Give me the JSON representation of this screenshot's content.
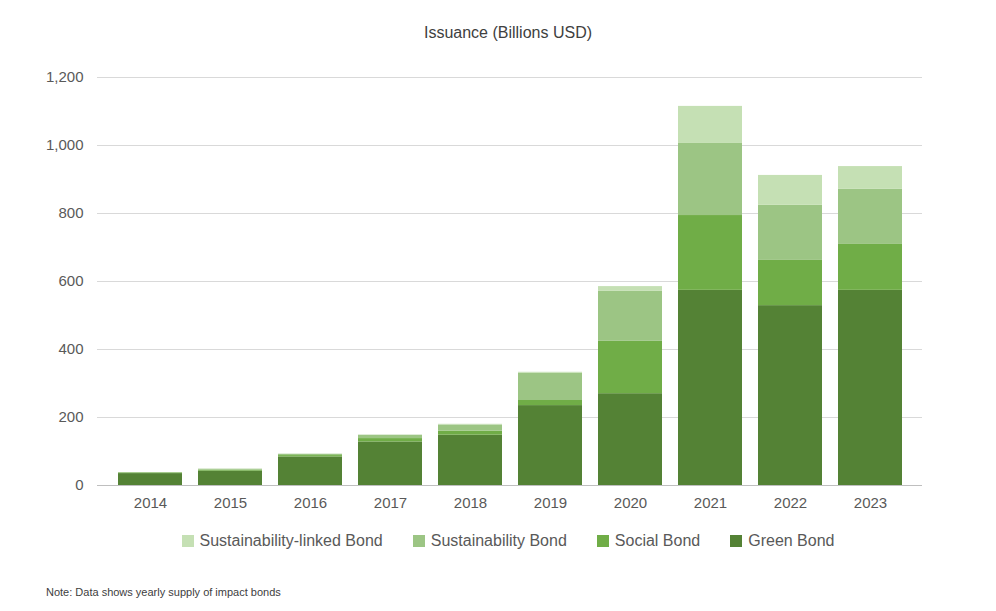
{
  "chart_data": {
    "type": "bar",
    "title": "Issuance (Billions USD)",
    "note": "Note: Data shows yearly supply of impact bonds",
    "categories": [
      "2014",
      "2015",
      "2016",
      "2017",
      "2018",
      "2019",
      "2020",
      "2021",
      "2022",
      "2023"
    ],
    "series": [
      {
        "name": "Green Bond",
        "color": "#548235",
        "values": [
          35,
          42,
          84,
          128,
          148,
          235,
          270,
          574,
          529,
          574
        ]
      },
      {
        "name": "Social Bond",
        "color": "#70ad47",
        "values": [
          2,
          3,
          4,
          10,
          12,
          15,
          154,
          220,
          133,
          135
        ]
      },
      {
        "name": "Sustainability Bond",
        "color": "#9cc584",
        "values": [
          1,
          3,
          4,
          10,
          18,
          80,
          147,
          212,
          162,
          162
        ]
      },
      {
        "name": "Sustainability-linked Bond",
        "color": "#c5e0b4",
        "values": [
          0,
          0,
          0,
          0,
          2,
          3,
          14,
          109,
          88,
          67
        ]
      }
    ],
    "ylim": [
      0,
      1200
    ],
    "yticks": [
      0,
      200,
      400,
      600,
      800,
      {
        "value": 1000,
        "label": "1,000"
      },
      {
        "value": 1200,
        "label": "1,200"
      }
    ],
    "grid": true,
    "stacked": true,
    "legend": "bottom"
  }
}
